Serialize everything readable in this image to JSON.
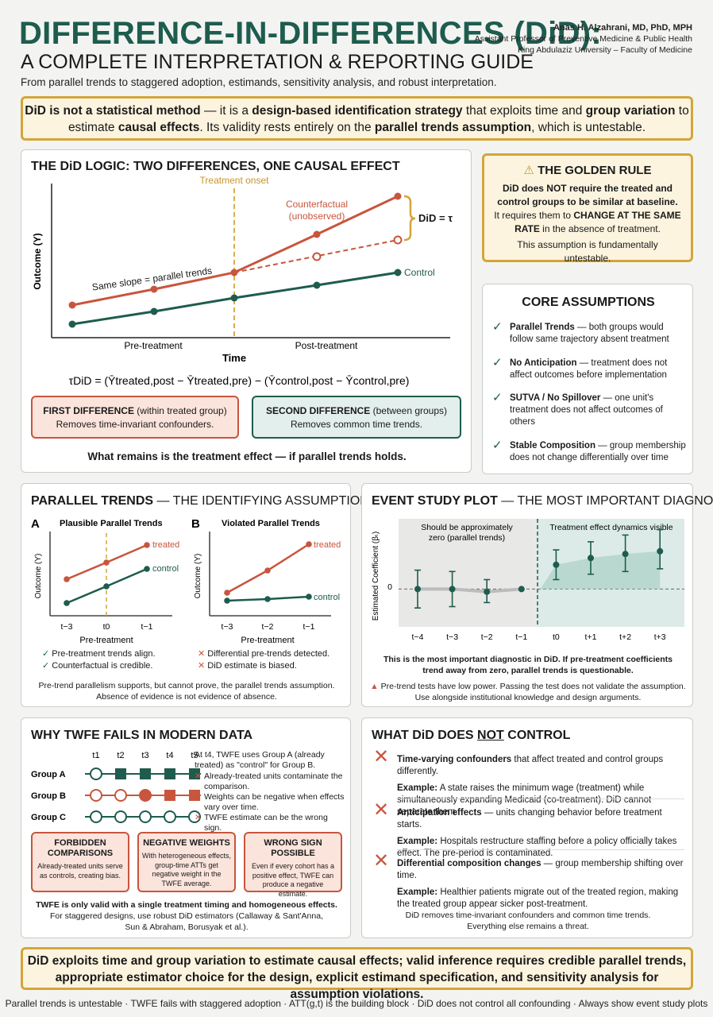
{
  "header": {
    "title_line1": "DIFFERENCE-IN-DIFFERENCES (DiD):",
    "title_line2": "A COMPLETE INTERPRETATION & REPORTING GUIDE",
    "subtitle": "From parallel trends to staggered adoption, estimands, sensitivity analysis, and robust interpretation.",
    "author_name": "Anas H. Alzahrani, MD, PhD, MPH",
    "author_title": "Assistant Professor of Preventive Medicine & Public Health",
    "author_affil": "King Abdulaziz University – Faculty of Medicine"
  },
  "intro": {
    "p1": "DiD is not a statistical method",
    "p2": " — it is a ",
    "p3": "design-based identification strategy",
    "p4": " that exploits time and ",
    "p5": "group variation",
    "p6": " to estimate ",
    "p7": "causal effects",
    "p8": ". Its validity rests entirely on the ",
    "p9": "parallel trends assumption",
    "p10": ", which is untestable."
  },
  "logic": {
    "title": "THE DiD LOGIC: TWO DIFFERENCES, ONE CAUSAL EFFECT",
    "treatment_onset": "Treatment onset",
    "counterfactual_1": "Counterfactual",
    "counterfactual_2": "(unobserved)",
    "did_label": "DiD = τ",
    "same_slope": "Same slope = parallel trends",
    "control": "Control",
    "ylabel": "Outcome (Y)",
    "xlabel": "Time",
    "pre": "Pre-treatment",
    "post": "Post-treatment",
    "formula": "τDiD = (Ȳtreated,post − Ȳtreated,pre) − (Ȳcontrol,post − Ȳcontrol,pre)",
    "first_title": "FIRST DIFFERENCE",
    "first_paren": " (within treated group)",
    "first_desc": "Removes time-invariant confounders.",
    "second_title": "SECOND DIFFERENCE",
    "second_paren": " (between groups)",
    "second_desc": "Removes common time trends.",
    "conclusion": "What remains is the treatment effect — if parallel trends holds."
  },
  "golden": {
    "title": "THE GOLDEN RULE",
    "line1": "DiD does NOT require the treated and control groups to be similar at baseline.",
    "line2a": "It requires them to ",
    "line2b": "CHANGE AT THE SAME RATE",
    "line2c": " in the absence of treatment.",
    "line3": "This assumption is fundamentally untestable."
  },
  "assumptions": {
    "title": "CORE ASSUMPTIONS",
    "items": [
      {
        "name": "Parallel Trends",
        "desc": " — both groups would follow same trajectory absent treatment"
      },
      {
        "name": "No Anticipation",
        "desc": " — treatment does not affect outcomes before implementation"
      },
      {
        "name": "SUTVA / No Spillover",
        "desc": " — one unit's treatment does not affect outcomes of others"
      },
      {
        "name": "Stable Composition",
        "desc": " — group membership does not change differentially over time"
      }
    ]
  },
  "trends": {
    "title_bold": "PARALLEL TRENDS",
    "title_light": " — THE IDENTIFYING ASSUMPTION",
    "a_letter": "A",
    "a_title": "Plausible Parallel Trends",
    "b_letter": "B",
    "b_title": "Violated Parallel Trends",
    "ylabel": "Outcome (Y)",
    "xlabel": "Pre-treatment",
    "treated": "treated",
    "control": "control",
    "a_ticks": [
      "t−3",
      "t0",
      "t−1"
    ],
    "b_ticks": [
      "t−3",
      "t−2",
      "t−1"
    ],
    "a_check1": "Pre-treatment trends align.",
    "a_check2": "Counterfactual is credible.",
    "b_x1": "Differential pre-trends detected.",
    "b_x2": "DiD estimate is biased.",
    "note1": "Pre-trend parallelism supports, but cannot prove, the parallel trends assumption.",
    "note2": "Absence of evidence is not evidence of absence."
  },
  "event": {
    "title_bold": "EVENT STUDY PLOT",
    "title_light": " — THE MOST IMPORTANT DIAGNOSTIC",
    "left_label1": "Should be approximately",
    "left_label2": "zero (parallel trends)",
    "right_label": "Treatment effect dynamics visible",
    "ylabel": "Estimated Coefficient (βₜ)",
    "zero": "0",
    "note_b1": "This is the most important diagnostic in DiD. If pre-treatment coefficients",
    "note_b2": "trend away from zero, parallel trends is questionable.",
    "warn1": "Pre-trend tests have low power. Passing the test does not validate the assumption.",
    "warn2": "Use alongside institutional knowledge and design arguments."
  },
  "chart_data": {
    "type": "scatter",
    "xlabel": "",
    "ylabel": "Estimated Coefficient (βₜ)",
    "categories": [
      "t−4",
      "t−3",
      "t−2",
      "t−1",
      "t0",
      "t+1",
      "t+2",
      "t+3"
    ],
    "values": [
      0.0,
      0.0,
      -0.1,
      0.0,
      0.9,
      1.15,
      1.3,
      1.4
    ],
    "ci_low": [
      -0.7,
      -0.65,
      -0.5,
      0.0,
      0.35,
      0.55,
      0.65,
      0.75
    ],
    "ci_high": [
      0.7,
      0.65,
      0.35,
      0.0,
      1.45,
      1.75,
      2.0,
      2.2
    ],
    "reference_period": "t−1",
    "ylim": [
      -1.4,
      2.6
    ]
  },
  "twfe": {
    "title": "WHY TWFE FAILS IN MODERN DATA",
    "periods": [
      "t1",
      "t2",
      "t3",
      "t4",
      "t5"
    ],
    "groups": [
      {
        "label": "Group A",
        "states": [
          "open",
          "teal",
          "teal",
          "teal",
          "teal"
        ]
      },
      {
        "label": "Group B",
        "states": [
          "open",
          "open",
          "red-circle",
          "red",
          "red"
        ]
      },
      {
        "label": "Group C",
        "states": [
          "open",
          "open",
          "open",
          "open",
          "open"
        ]
      }
    ],
    "explain_head": "At t4, TWFE uses Group A (already treated) as \"control\" for Group B.",
    "explain_items": [
      "Already-treated units contaminate the comparison.",
      "Weights can be negative when effects vary over time.",
      "TWFE estimate can be the wrong sign."
    ],
    "box1_title": "FORBIDDEN COMPARISONS",
    "box1_desc": "Already-treated units serve as controls, creating bias.",
    "box2_title": "NEGATIVE WEIGHTS",
    "box2_desc": "With heterogeneous effects, group-time ATTs get negative weight in the TWFE average.",
    "box3_title": "WRONG SIGN POSSIBLE",
    "box3_desc": "Even if every cohort has a positive effect, TWFE can produce a negative estimate.",
    "bottom_bold": "TWFE is only valid with a single treatment timing and homogeneous effects.",
    "bottom_1": "For staggered designs, use robust DiD estimators (Callaway & Sant'Anna,",
    "bottom_2": "Sun & Abraham, Borusyak et al.)."
  },
  "notctl": {
    "title_a": "WHAT DiD DOES ",
    "title_not": "NOT",
    "title_b": " CONTROL",
    "items": [
      {
        "name": "Time-varying confounders",
        "desc": " that affect treated and control groups differently.",
        "ex": "A state raises the minimum wage (treatment) while simultaneously expanding Medicaid (co-treatment). DiD cannot separate them."
      },
      {
        "name": "Anticipation effects",
        "desc": " — units changing behavior before treatment starts.",
        "ex": "Hospitals restructure staffing before a policy officially takes effect. The pre-period is contaminated."
      },
      {
        "name": "Differential composition changes",
        "desc": " — group membership shifting over time.",
        "ex": "Healthier patients migrate out of the treated region, making the treated group appear sicker post-treatment."
      }
    ],
    "example_label": "Example:",
    "foot1": "DiD removes time-invariant confounders and common time trends.",
    "foot2": "Everything else remains a threat."
  },
  "summary": "DiD exploits time and group variation to estimate causal effects; valid inference requires credible parallel trends, appropriate estimator choice for the design, explicit estimand specification, and sensitivity analysis for assumption violations.",
  "footer": "Parallel trends is untestable · TWFE fails with staggered adoption · ATT(g,t) is the building block · DiD does not control all confounding · Always show event study plots",
  "colors": {
    "teal": "#1e5c4e",
    "red": "#c8553d",
    "gold": "#d4a53a"
  }
}
